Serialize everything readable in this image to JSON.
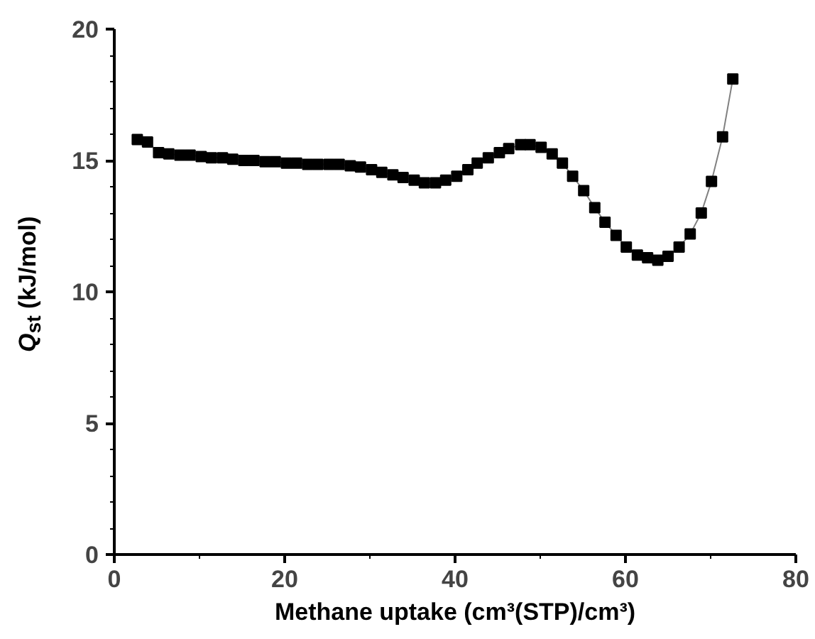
{
  "chart_data": {
    "type": "line",
    "xlabel": "Methane uptake (cm³(STP)/cm³)",
    "ylabel": "Q$_{st}$ (kJ/mol)",
    "x": [
      2.7,
      3.9,
      5.2,
      6.4,
      7.7,
      8.9,
      10.2,
      11.4,
      12.7,
      13.9,
      15.2,
      16.4,
      17.7,
      18.9,
      20.2,
      21.4,
      22.7,
      23.9,
      25.2,
      26.4,
      27.7,
      28.9,
      30.2,
      31.4,
      32.7,
      33.9,
      35.2,
      36.4,
      37.7,
      38.9,
      40.2,
      41.5,
      42.6,
      43.9,
      45.2,
      46.3,
      47.7,
      48.8,
      50.1,
      51.4,
      52.6,
      53.8,
      55.1,
      56.4,
      57.6,
      58.9,
      60.1,
      61.4,
      62.6,
      63.8,
      65.0,
      66.3,
      67.6,
      68.9,
      70.1,
      71.4,
      72.6
    ],
    "series": [
      {
        "color": "#000000",
        "values": [
          15.8,
          15.7,
          15.3,
          15.25,
          15.2,
          15.2,
          15.15,
          15.1,
          15.1,
          15.05,
          15.0,
          15.0,
          14.95,
          14.95,
          14.9,
          14.9,
          14.85,
          14.85,
          14.85,
          14.85,
          14.8,
          14.75,
          14.65,
          14.55,
          14.45,
          14.35,
          14.25,
          14.15,
          14.15,
          14.25,
          14.4,
          14.65,
          14.9,
          15.1,
          15.3,
          15.45,
          15.6,
          15.6,
          15.5,
          15.25,
          14.9,
          14.4,
          13.85,
          13.2,
          12.65,
          12.15,
          11.7,
          11.4,
          11.3,
          11.2,
          11.35,
          11.7,
          12.2,
          13.0,
          14.2,
          15.9,
          18.1
        ]
      }
    ],
    "xlim": [
      0,
      80
    ],
    "ylim": [
      0,
      20
    ],
    "xticks": [
      0,
      20,
      40,
      60,
      80
    ],
    "yticks": [
      0,
      5,
      10,
      15,
      20
    ],
    "marker": "square",
    "grid": false
  }
}
